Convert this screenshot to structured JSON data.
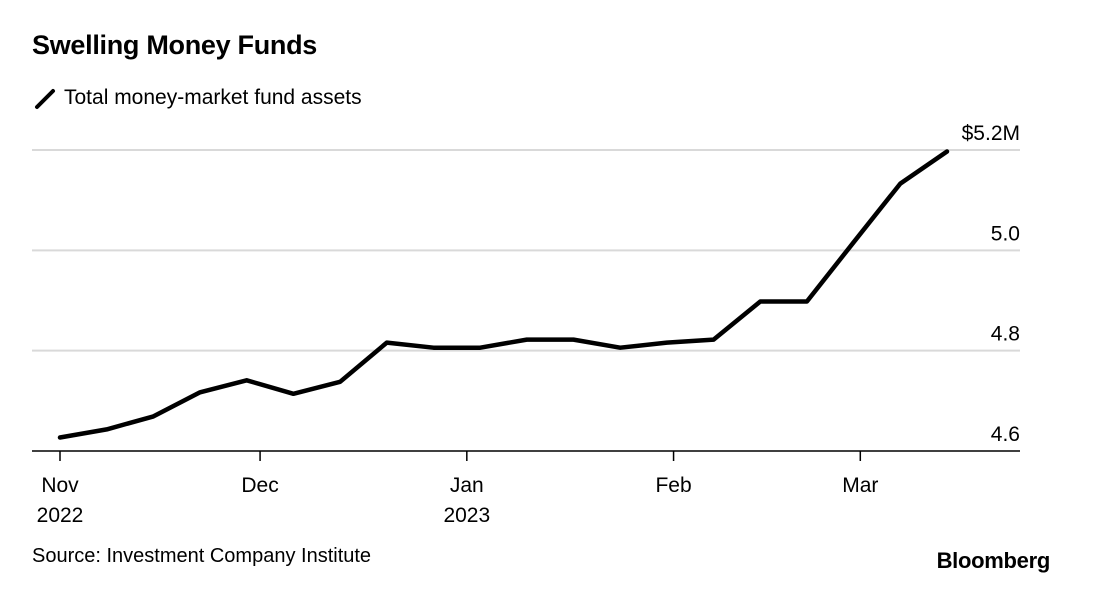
{
  "title": "Swelling Money Funds",
  "legend": {
    "label": "Total money-market fund assets"
  },
  "source": "Source: Investment Company Institute",
  "brand": "Bloomberg",
  "chart_data": {
    "type": "line",
    "title": "Swelling Money Funds",
    "xlabel": "",
    "ylabel": "",
    "ylim": [
      4.6,
      5.2
    ],
    "yticks": [
      {
        "value": 4.6,
        "label": "4.6"
      },
      {
        "value": 4.8,
        "label": "4.8"
      },
      {
        "value": 5.0,
        "label": "5.0"
      },
      {
        "value": 5.2,
        "label": "$5.2M"
      }
    ],
    "xticks": [
      {
        "date": "2022-11-01",
        "label": "Nov",
        "sublabel": "2022"
      },
      {
        "date": "2022-12-01",
        "label": "Dec",
        "sublabel": ""
      },
      {
        "date": "2023-01-01",
        "label": "Jan",
        "sublabel": "2023"
      },
      {
        "date": "2023-02-01",
        "label": "Feb",
        "sublabel": ""
      },
      {
        "date": "2023-03-01",
        "label": "Mar",
        "sublabel": ""
      }
    ],
    "grid": true,
    "series": [
      {
        "name": "Total money-market fund assets",
        "color": "#000000",
        "points": [
          {
            "x": "2022-11-01",
            "y": 4.627
          },
          {
            "x": "2022-11-08",
            "y": 4.643
          },
          {
            "x": "2022-11-15",
            "y": 4.669
          },
          {
            "x": "2022-11-22",
            "y": 4.717
          },
          {
            "x": "2022-11-29",
            "y": 4.741
          },
          {
            "x": "2022-12-06",
            "y": 4.714
          },
          {
            "x": "2022-12-13",
            "y": 4.738
          },
          {
            "x": "2022-12-20",
            "y": 4.816
          },
          {
            "x": "2022-12-27",
            "y": 4.806
          },
          {
            "x": "2023-01-03",
            "y": 4.806
          },
          {
            "x": "2023-01-10",
            "y": 4.822
          },
          {
            "x": "2023-01-17",
            "y": 4.822
          },
          {
            "x": "2023-01-24",
            "y": 4.806
          },
          {
            "x": "2023-01-31",
            "y": 4.816
          },
          {
            "x": "2023-02-07",
            "y": 4.822
          },
          {
            "x": "2023-02-14",
            "y": 4.898
          },
          {
            "x": "2023-02-21",
            "y": 4.898
          },
          {
            "x": "2023-02-28",
            "y": 5.016
          },
          {
            "x": "2023-03-07",
            "y": 5.133
          },
          {
            "x": "2023-03-14",
            "y": 5.197
          }
        ]
      }
    ]
  }
}
